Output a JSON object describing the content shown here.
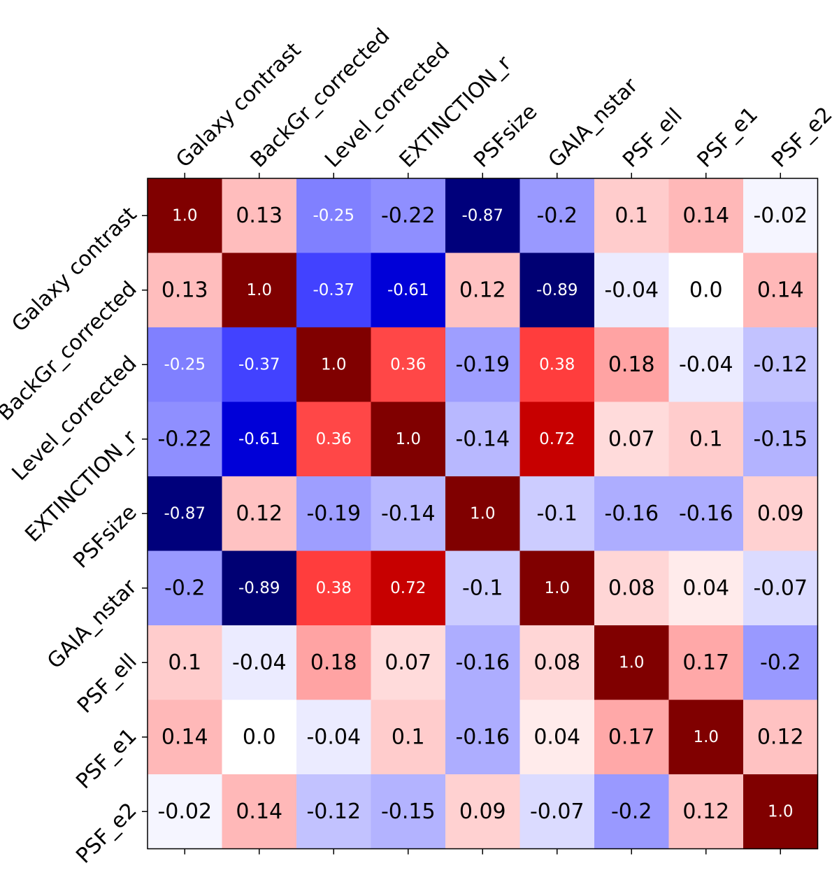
{
  "chart_data": {
    "type": "heatmap",
    "title": "",
    "xlabel": "",
    "ylabel": "",
    "colormap": "seismic",
    "value_range": [
      -1,
      1
    ],
    "x_categories": [
      "Galaxy contrast",
      "BackGr_corrected",
      "Level_corrected",
      "EXTINCTION_r",
      "PSFsize",
      "GAIA_nstar",
      "PSF_ell",
      "PSF_e1",
      "PSF_e2"
    ],
    "y_categories": [
      "Galaxy contrast",
      "BackGr_corrected",
      "Level_corrected",
      "EXTINCTION_r",
      "PSFsize",
      "GAIA_nstar",
      "PSF_ell",
      "PSF_e1",
      "PSF_e2"
    ],
    "values": [
      [
        1.0,
        0.13,
        -0.25,
        -0.22,
        -0.87,
        -0.2,
        0.1,
        0.14,
        -0.02
      ],
      [
        0.13,
        1.0,
        -0.37,
        -0.61,
        0.12,
        -0.89,
        -0.04,
        0.0,
        0.14
      ],
      [
        -0.25,
        -0.37,
        1.0,
        0.36,
        -0.19,
        0.38,
        0.18,
        -0.04,
        -0.12
      ],
      [
        -0.22,
        -0.61,
        0.36,
        1.0,
        -0.14,
        0.72,
        0.07,
        0.1,
        -0.15
      ],
      [
        -0.87,
        0.12,
        -0.19,
        -0.14,
        1.0,
        -0.1,
        -0.16,
        -0.16,
        0.09
      ],
      [
        -0.2,
        -0.89,
        0.38,
        0.72,
        -0.1,
        1.0,
        0.08,
        0.04,
        -0.07
      ],
      [
        0.1,
        -0.04,
        0.18,
        0.07,
        -0.16,
        0.08,
        1.0,
        0.17,
        -0.2
      ],
      [
        0.14,
        0.0,
        -0.04,
        0.1,
        -0.16,
        0.04,
        0.17,
        1.0,
        0.12
      ],
      [
        -0.02,
        0.14,
        -0.12,
        -0.15,
        0.09,
        -0.07,
        -0.2,
        0.12,
        1.0
      ]
    ],
    "value_labels": [
      [
        "1.0",
        "0.13",
        "-0.25",
        "-0.22",
        "-0.87",
        "-0.2",
        "0.1",
        "0.14",
        "-0.02"
      ],
      [
        "0.13",
        "1.0",
        "-0.37",
        "-0.61",
        "0.12",
        "-0.89",
        "-0.04",
        "0.0",
        "0.14"
      ],
      [
        "-0.25",
        "-0.37",
        "1.0",
        "0.36",
        "-0.19",
        "0.38",
        "0.18",
        "-0.04",
        "-0.12"
      ],
      [
        "-0.22",
        "-0.61",
        "0.36",
        "1.0",
        "-0.14",
        "0.72",
        "0.07",
        "0.1",
        "-0.15"
      ],
      [
        "-0.87",
        "0.12",
        "-0.19",
        "-0.14",
        "1.0",
        "-0.1",
        "-0.16",
        "-0.16",
        "0.09"
      ],
      [
        "-0.2",
        "-0.89",
        "0.38",
        "0.72",
        "-0.1",
        "1.0",
        "0.08",
        "0.04",
        "-0.07"
      ],
      [
        "0.1",
        "-0.04",
        "0.18",
        "0.07",
        "-0.16",
        "0.08",
        "1.0",
        "0.17",
        "-0.2"
      ],
      [
        "0.14",
        "0.0",
        "-0.04",
        "0.1",
        "-0.16",
        "0.04",
        "0.17",
        "1.0",
        "0.12"
      ],
      [
        "-0.02",
        "0.14",
        "-0.12",
        "-0.15",
        "0.09",
        "-0.07",
        "-0.2",
        "0.12",
        "1.0"
      ]
    ],
    "x_tick_position": "top",
    "legend": "none"
  }
}
